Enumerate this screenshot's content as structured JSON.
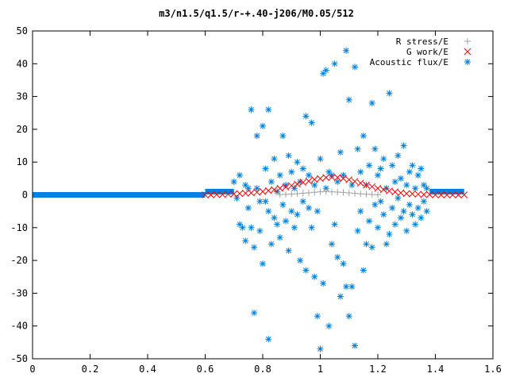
{
  "chart_data": {
    "type": "scatter",
    "title": "m3/n1.5/q1.5/r-+.40-j206/M0.05/512",
    "xlabel": "",
    "ylabel": "",
    "xlim": [
      0,
      1.6
    ],
    "ylim": [
      -50,
      50
    ],
    "xticks": [
      "0",
      "0.2",
      "0.4",
      "0.6",
      "0.8",
      "1",
      "1.2",
      "1.4",
      "1.6"
    ],
    "yticks": [
      "50",
      "40",
      "30",
      "20",
      "10",
      "0",
      "-10",
      "-20",
      "-30",
      "-40",
      "-50"
    ],
    "legend_position": "top-right",
    "series": [
      {
        "name": "R stress/E",
        "marker": "plus",
        "color": "#a0a0a0",
        "points": [
          [
            0.86,
            0.1
          ],
          [
            0.88,
            0.15
          ],
          [
            0.9,
            0.25
          ],
          [
            0.92,
            0.35
          ],
          [
            0.94,
            0.5
          ],
          [
            0.96,
            0.65
          ],
          [
            0.98,
            0.8
          ],
          [
            1.0,
            0.95
          ],
          [
            1.02,
            1.0
          ],
          [
            1.04,
            0.95
          ],
          [
            1.06,
            0.85
          ],
          [
            1.08,
            0.75
          ],
          [
            1.1,
            0.6
          ],
          [
            1.12,
            0.45
          ],
          [
            1.14,
            0.3
          ],
          [
            1.16,
            0.2
          ],
          [
            1.18,
            0.1
          ],
          [
            1.2,
            0.05
          ]
        ]
      },
      {
        "name": "G work/E",
        "marker": "cross",
        "color": "#ff0000",
        "points": [
          [
            0.6,
            0.0
          ],
          [
            0.62,
            0.0
          ],
          [
            0.64,
            0.1
          ],
          [
            0.66,
            0.1
          ],
          [
            0.68,
            0.2
          ],
          [
            0.7,
            0.3
          ],
          [
            0.72,
            0.4
          ],
          [
            0.74,
            0.5
          ],
          [
            0.76,
            0.6
          ],
          [
            0.78,
            0.8
          ],
          [
            0.8,
            1.0
          ],
          [
            0.82,
            1.3
          ],
          [
            0.84,
            1.6
          ],
          [
            0.86,
            2.0
          ],
          [
            0.88,
            2.4
          ],
          [
            0.9,
            2.8
          ],
          [
            0.92,
            3.3
          ],
          [
            0.94,
            3.8
          ],
          [
            0.96,
            4.2
          ],
          [
            0.98,
            4.7
          ],
          [
            1.0,
            5.0
          ],
          [
            1.02,
            5.3
          ],
          [
            1.04,
            5.4
          ],
          [
            1.06,
            5.3
          ],
          [
            1.08,
            5.0
          ],
          [
            1.1,
            4.6
          ],
          [
            1.12,
            4.1
          ],
          [
            1.14,
            3.6
          ],
          [
            1.16,
            3.0
          ],
          [
            1.18,
            2.5
          ],
          [
            1.2,
            2.0
          ],
          [
            1.22,
            1.6
          ],
          [
            1.24,
            1.2
          ],
          [
            1.26,
            0.9
          ],
          [
            1.28,
            0.6
          ],
          [
            1.3,
            0.4
          ],
          [
            1.32,
            0.3
          ],
          [
            1.34,
            0.2
          ],
          [
            1.36,
            0.1
          ],
          [
            1.38,
            0.1
          ],
          [
            1.4,
            0.0
          ],
          [
            1.42,
            0.0
          ],
          [
            1.44,
            0.0
          ],
          [
            1.46,
            0.0
          ],
          [
            1.48,
            0.0
          ],
          [
            1.5,
            0.0
          ]
        ]
      },
      {
        "name": "Acoustic flux/E",
        "marker": "star",
        "color": "#0080e0",
        "baseline_segments": [
          [
            0.0,
            0.6,
            0.0
          ],
          [
            0.6,
            0.7,
            1.0
          ],
          [
            1.38,
            1.5,
            1.0
          ]
        ],
        "points": [
          [
            0.7,
            4
          ],
          [
            0.71,
            -1
          ],
          [
            0.72,
            6
          ],
          [
            0.72,
            -9
          ],
          [
            0.73,
            -10
          ],
          [
            0.74,
            3
          ],
          [
            0.74,
            -14
          ],
          [
            0.75,
            -4
          ],
          [
            0.75,
            2
          ],
          [
            0.76,
            26
          ],
          [
            0.76,
            -10
          ],
          [
            0.77,
            -16
          ],
          [
            0.77,
            -36
          ],
          [
            0.78,
            18
          ],
          [
            0.78,
            2
          ],
          [
            0.79,
            -2
          ],
          [
            0.79,
            -11
          ],
          [
            0.8,
            -21
          ],
          [
            0.8,
            21
          ],
          [
            0.81,
            8
          ],
          [
            0.81,
            -2
          ],
          [
            0.82,
            26
          ],
          [
            0.82,
            -5
          ],
          [
            0.82,
            -44
          ],
          [
            0.83,
            4
          ],
          [
            0.83,
            -15
          ],
          [
            0.84,
            -7
          ],
          [
            0.84,
            11
          ],
          [
            0.85,
            1
          ],
          [
            0.85,
            -9
          ],
          [
            0.86,
            6
          ],
          [
            0.86,
            -13
          ],
          [
            0.87,
            18
          ],
          [
            0.87,
            -3
          ],
          [
            0.88,
            -8
          ],
          [
            0.88,
            3
          ],
          [
            0.89,
            12
          ],
          [
            0.89,
            -17
          ],
          [
            0.9,
            7
          ],
          [
            0.9,
            -5
          ],
          [
            0.91,
            -10
          ],
          [
            0.91,
            2
          ],
          [
            0.92,
            -6
          ],
          [
            0.92,
            10
          ],
          [
            0.93,
            -20
          ],
          [
            0.93,
            4
          ],
          [
            0.94,
            -2
          ],
          [
            0.94,
            8
          ],
          [
            0.95,
            24
          ],
          [
            0.95,
            -23
          ],
          [
            0.96,
            -4
          ],
          [
            0.96,
            6
          ],
          [
            0.97,
            22
          ],
          [
            0.97,
            -10
          ],
          [
            0.98,
            -25
          ],
          [
            0.98,
            3
          ],
          [
            0.99,
            -37
          ],
          [
            0.99,
            -5
          ],
          [
            1.0,
            -47
          ],
          [
            1.0,
            11
          ],
          [
            1.01,
            37
          ],
          [
            1.01,
            -27
          ],
          [
            1.02,
            38
          ],
          [
            1.02,
            2
          ],
          [
            1.03,
            -40
          ],
          [
            1.03,
            7
          ],
          [
            1.04,
            -15
          ],
          [
            1.04,
            6
          ],
          [
            1.05,
            40
          ],
          [
            1.05,
            -9
          ],
          [
            1.06,
            -19
          ],
          [
            1.06,
            4
          ],
          [
            1.07,
            -31
          ],
          [
            1.07,
            13
          ],
          [
            1.08,
            -21
          ],
          [
            1.08,
            6
          ],
          [
            1.09,
            44
          ],
          [
            1.09,
            -28
          ],
          [
            1.1,
            29
          ],
          [
            1.1,
            -37
          ],
          [
            1.11,
            3
          ],
          [
            1.11,
            -28
          ],
          [
            1.12,
            -46
          ],
          [
            1.12,
            39
          ],
          [
            1.13,
            -11
          ],
          [
            1.13,
            14
          ],
          [
            1.14,
            7
          ],
          [
            1.14,
            -5
          ],
          [
            1.15,
            18
          ],
          [
            1.15,
            -23
          ],
          [
            1.16,
            -15
          ],
          [
            1.16,
            3
          ],
          [
            1.17,
            9
          ],
          [
            1.17,
            -8
          ],
          [
            1.18,
            28
          ],
          [
            1.18,
            -16
          ],
          [
            1.19,
            14
          ],
          [
            1.19,
            -3
          ],
          [
            1.2,
            6
          ],
          [
            1.2,
            -10
          ],
          [
            1.21,
            -2
          ],
          [
            1.21,
            8
          ],
          [
            1.22,
            11
          ],
          [
            1.22,
            -6
          ],
          [
            1.23,
            -15
          ],
          [
            1.23,
            2
          ],
          [
            1.24,
            31
          ],
          [
            1.24,
            -12
          ],
          [
            1.25,
            -4
          ],
          [
            1.25,
            9
          ],
          [
            1.26,
            4
          ],
          [
            1.26,
            -9
          ],
          [
            1.27,
            -1
          ],
          [
            1.27,
            12
          ],
          [
            1.28,
            -7
          ],
          [
            1.28,
            5
          ],
          [
            1.29,
            15
          ],
          [
            1.29,
            -5
          ],
          [
            1.3,
            -11
          ],
          [
            1.3,
            3
          ],
          [
            1.31,
            7
          ],
          [
            1.31,
            -3
          ],
          [
            1.32,
            -6
          ],
          [
            1.32,
            9
          ],
          [
            1.33,
            2
          ],
          [
            1.33,
            -9
          ],
          [
            1.34,
            -4
          ],
          [
            1.34,
            6
          ],
          [
            1.35,
            8
          ],
          [
            1.35,
            -7
          ],
          [
            1.36,
            3
          ],
          [
            1.36,
            -2
          ],
          [
            1.37,
            -5
          ],
          [
            1.37,
            2
          ]
        ]
      }
    ]
  }
}
